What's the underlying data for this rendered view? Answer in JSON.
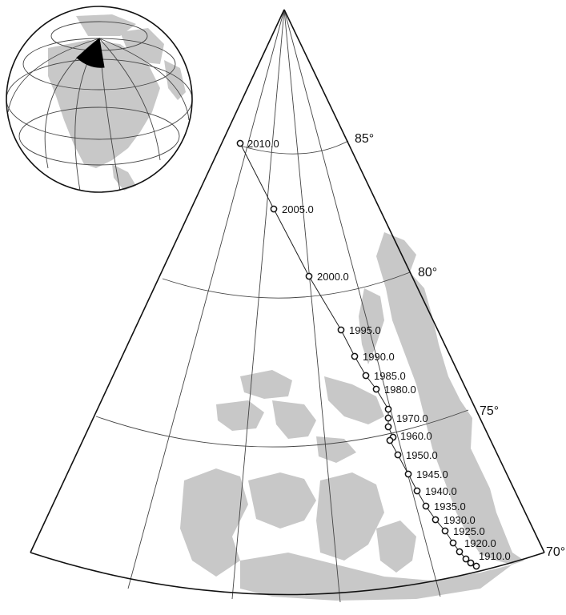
{
  "map": {
    "latitude_labels": [
      "85°",
      "80°",
      "75°",
      "70°"
    ],
    "track_labels": [
      "2010.0",
      "2005.0",
      "2000.0",
      "1995.0",
      "1990.0",
      "1985.0",
      "1980.0",
      "1970.0",
      "1960.0",
      "1950.0",
      "1945.0",
      "1940.0",
      "1935.0",
      "1930.0",
      "1925.0",
      "1920.0",
      "1910.0"
    ],
    "colors": {
      "land": "#c8c8c8",
      "lines": "#111111",
      "grid": "#444444",
      "ocean": "#ffffff"
    },
    "inset": {
      "type": "globe",
      "highlighted_sector_color": "#000000"
    }
  }
}
